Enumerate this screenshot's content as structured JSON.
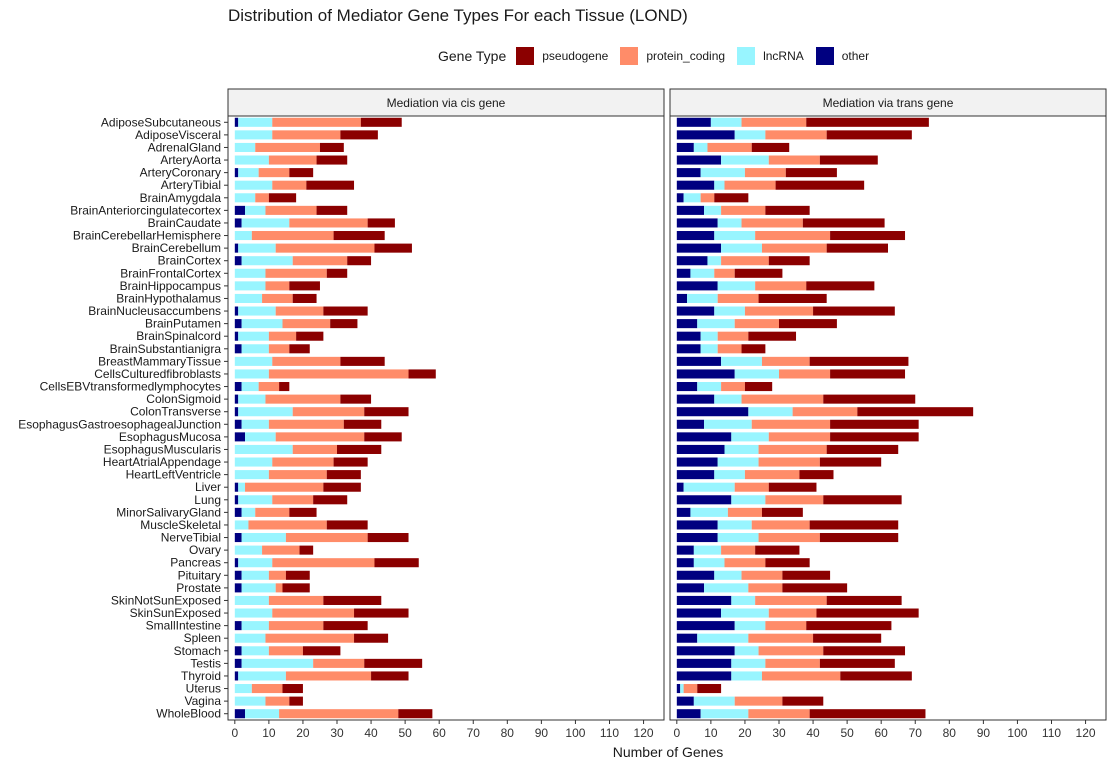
{
  "chart_data": {
    "type": "bar",
    "orientation": "horizontal",
    "stacked": true,
    "title": "Distribution of Mediator Gene Types For each Tissue (LOND)",
    "xlabel": "Number of Genes",
    "xlim": [
      -2,
      126
    ],
    "xticks": [
      0,
      10,
      20,
      30,
      40,
      50,
      60,
      70,
      80,
      90,
      100,
      110,
      120
    ],
    "grid": false,
    "legend": {
      "title": "Gene Type",
      "position": "top",
      "entries": [
        {
          "name": "pseudogene",
          "color": "#8B0000"
        },
        {
          "name": "protein_coding",
          "color": "#FF8C69"
        },
        {
          "name": "lncRNA",
          "color": "#98F5FF"
        },
        {
          "name": "other",
          "color": "#000080"
        }
      ]
    },
    "stack_order": [
      "other",
      "lncRNA",
      "protein_coding",
      "pseudogene"
    ],
    "categories": [
      "AdiposeSubcutaneous",
      "AdiposeVisceral",
      "AdrenalGland",
      "ArteryAorta",
      "ArteryCoronary",
      "ArteryTibial",
      "BrainAmygdala",
      "BrainAnteriorcingulatecortex",
      "BrainCaudate",
      "BrainCerebellarHemisphere",
      "BrainCerebellum",
      "BrainCortex",
      "BrainFrontalCortex",
      "BrainHippocampus",
      "BrainHypothalamus",
      "BrainNucleusaccumbens",
      "BrainPutamen",
      "BrainSpinalcord",
      "BrainSubstantianigra",
      "BreastMammaryTissue",
      "CellsCulturedfibroblasts",
      "CellsEBVtransformedlymphocytes",
      "ColonSigmoid",
      "ColonTransverse",
      "EsophagusGastroesophagealJunction",
      "EsophagusMucosa",
      "EsophagusMuscularis",
      "HeartAtrialAppendage",
      "HeartLeftVentricle",
      "Liver",
      "Lung",
      "MinorSalivaryGland",
      "MuscleSkeletal",
      "NerveTibial",
      "Ovary",
      "Pancreas",
      "Pituitary",
      "Prostate",
      "SkinNotSunExposed",
      "SkinSunExposed",
      "SmallIntestine",
      "Spleen",
      "Stomach",
      "Testis",
      "Thyroid",
      "Uterus",
      "Vagina",
      "WholeBlood"
    ],
    "panels": [
      {
        "title": "Mediation via cis gene",
        "series": [
          {
            "name": "other",
            "values": [
              1,
              0,
              0,
              0,
              1,
              0,
              0,
              3,
              2,
              0,
              1,
              2,
              0,
              0,
              0,
              1,
              2,
              1,
              2,
              0,
              0,
              2,
              1,
              1,
              2,
              3,
              0,
              0,
              0,
              1,
              1,
              2,
              0,
              2,
              0,
              1,
              2,
              2,
              0,
              0,
              2,
              0,
              2,
              2,
              1,
              0,
              0,
              3
            ]
          },
          {
            "name": "lncRNA",
            "values": [
              10,
              11,
              6,
              10,
              6,
              11,
              6,
              6,
              14,
              5,
              11,
              15,
              9,
              9,
              8,
              11,
              12,
              9,
              8,
              11,
              10,
              5,
              8,
              16,
              8,
              9,
              17,
              11,
              10,
              2,
              10,
              4,
              4,
              13,
              8,
              10,
              8,
              10,
              10,
              11,
              8,
              9,
              8,
              21,
              14,
              5,
              9,
              10
            ]
          },
          {
            "name": "protein_coding",
            "values": [
              26,
              20,
              19,
              14,
              9,
              10,
              4,
              15,
              23,
              24,
              29,
              16,
              18,
              7,
              9,
              14,
              14,
              8,
              6,
              20,
              41,
              6,
              22,
              21,
              22,
              26,
              13,
              18,
              17,
              23,
              12,
              10,
              23,
              24,
              11,
              30,
              5,
              2,
              16,
              24,
              16,
              26,
              10,
              15,
              25,
              9,
              7,
              35
            ]
          },
          {
            "name": "pseudogene",
            "values": [
              12,
              11,
              7,
              9,
              7,
              14,
              8,
              9,
              8,
              15,
              11,
              7,
              6,
              9,
              7,
              13,
              8,
              8,
              6,
              13,
              8,
              3,
              9,
              13,
              11,
              11,
              13,
              10,
              10,
              11,
              10,
              8,
              12,
              12,
              4,
              13,
              7,
              8,
              17,
              16,
              13,
              10,
              11,
              17,
              11,
              6,
              4,
              10
            ]
          }
        ]
      },
      {
        "title": "Mediation via trans gene",
        "series": [
          {
            "name": "other",
            "values": [
              10,
              17,
              5,
              13,
              7,
              11,
              2,
              8,
              12,
              11,
              13,
              9,
              4,
              12,
              3,
              11,
              6,
              7,
              7,
              13,
              17,
              6,
              11,
              21,
              8,
              16,
              14,
              12,
              11,
              2,
              16,
              4,
              12,
              12,
              5,
              5,
              11,
              8,
              16,
              13,
              17,
              6,
              17,
              16,
              16,
              1,
              5,
              7
            ]
          },
          {
            "name": "lncRNA",
            "values": [
              9,
              9,
              4,
              14,
              13,
              3,
              5,
              5,
              7,
              12,
              12,
              4,
              7,
              11,
              9,
              9,
              11,
              5,
              5,
              12,
              13,
              7,
              8,
              13,
              14,
              11,
              10,
              12,
              9,
              15,
              10,
              11,
              10,
              12,
              8,
              9,
              8,
              13,
              7,
              14,
              9,
              15,
              7,
              10,
              9,
              1,
              12,
              14
            ]
          },
          {
            "name": "protein_coding",
            "values": [
              19,
              18,
              13,
              15,
              12,
              15,
              4,
              13,
              18,
              22,
              19,
              14,
              6,
              15,
              12,
              20,
              13,
              9,
              7,
              14,
              15,
              7,
              24,
              19,
              23,
              18,
              20,
              18,
              16,
              10,
              17,
              10,
              17,
              18,
              10,
              12,
              12,
              10,
              21,
              14,
              12,
              19,
              19,
              16,
              23,
              4,
              14,
              18
            ]
          },
          {
            "name": "pseudogene",
            "values": [
              36,
              25,
              11,
              17,
              15,
              26,
              10,
              13,
              24,
              22,
              18,
              12,
              14,
              20,
              20,
              24,
              17,
              14,
              7,
              29,
              22,
              8,
              27,
              34,
              26,
              26,
              21,
              18,
              10,
              14,
              23,
              12,
              26,
              23,
              13,
              13,
              14,
              19,
              22,
              30,
              25,
              20,
              24,
              22,
              21,
              7,
              12,
              34
            ]
          }
        ]
      }
    ]
  }
}
